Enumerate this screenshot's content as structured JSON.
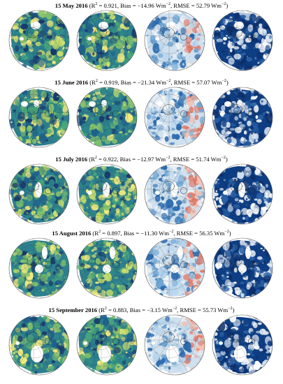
{
  "figure": {
    "rows": [
      {
        "date": "15 May 2016",
        "r2": "0.921",
        "bias": "−14.96",
        "rmse": "52.79",
        "unit": "Wm",
        "exp": "−2"
      },
      {
        "date": "15 June 2016",
        "r2": "0.919",
        "bias": "−21.34",
        "rmse": "57.07",
        "unit": "Wm",
        "exp": "−2"
      },
      {
        "date": "15 July 2016",
        "r2": "0.922",
        "bias": "−12.97",
        "rmse": "51.74",
        "unit": "Wm",
        "exp": "−2"
      },
      {
        "date": "15 August 2016",
        "r2": "0.897",
        "bias": "−11.30",
        "rmse": "56.35",
        "unit": "Wm",
        "exp": "−2"
      },
      {
        "date": "15 September 2016",
        "r2": "0.883",
        "bias": "−3.15",
        "rmse": "55.73",
        "unit": "Wm",
        "exp": "−2"
      }
    ],
    "label_r2": "R",
    "label_r2_exp": "2",
    "label_bias": "Bias",
    "label_rmse": "RMSE",
    "panel_types": [
      "estimated",
      "observed",
      "difference",
      "cloud"
    ],
    "palettes": {
      "radiation": [
        "#173a6e",
        "#1f5f8c",
        "#2d8a8a",
        "#49a77b",
        "#86c46b",
        "#c9de6c",
        "#f4ea7e"
      ],
      "difference": [
        "#2b6cb0",
        "#6fa6d6",
        "#b9d6ee",
        "#eef3f7",
        "#f3c2b4",
        "#e27b6a"
      ],
      "cloud": [
        "#0b2f6b",
        "#0d3e85",
        "#2a62a8",
        "#dbe6f2",
        "#ffffff"
      ],
      "outline": "#333333"
    }
  }
}
